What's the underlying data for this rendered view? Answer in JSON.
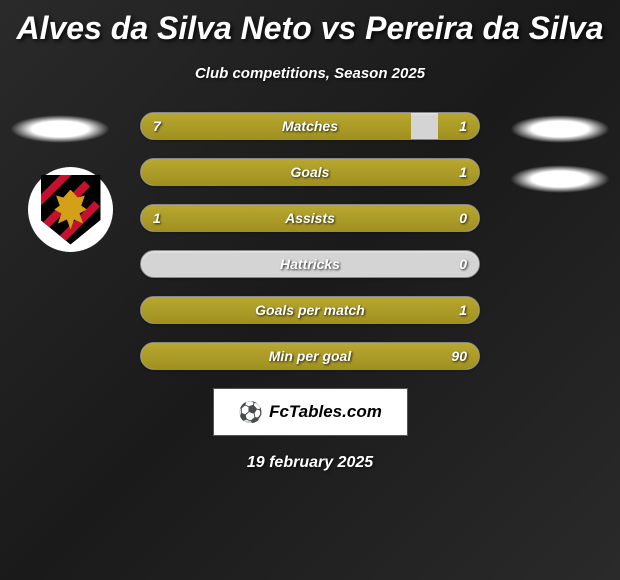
{
  "title": "Alves da Silva Neto vs Pereira da Silva",
  "subtitle": "Club competitions, Season 2025",
  "colors": {
    "background_gradient": [
      "#2a2a2a",
      "#1a1a1a"
    ],
    "bar_track": "#d4d4d4",
    "bar_fill": "#a09020",
    "text": "#ffffff",
    "badge_bg": "#ffffff",
    "badge_text": "#000000",
    "crest_bg": "#ffffff",
    "crest_shield": "#000000",
    "crest_stripes": "#c8102e",
    "crest_lion": "#d4a017"
  },
  "typography": {
    "title_fontsize": 32,
    "subtitle_fontsize": 15,
    "bar_label_fontsize": 14,
    "footer_fontsize": 16
  },
  "stats": [
    {
      "label": "Matches",
      "left_val": "7",
      "right_val": "1",
      "left_pct": 80,
      "right_pct": 12
    },
    {
      "label": "Goals",
      "left_val": "",
      "right_val": "1",
      "left_pct": 0,
      "right_pct": 100
    },
    {
      "label": "Assists",
      "left_val": "1",
      "right_val": "0",
      "left_pct": 100,
      "right_pct": 0
    },
    {
      "label": "Hattricks",
      "left_val": "",
      "right_val": "0",
      "left_pct": 0,
      "right_pct": 0
    },
    {
      "label": "Goals per match",
      "left_val": "",
      "right_val": "1",
      "left_pct": 0,
      "right_pct": 100
    },
    {
      "label": "Min per goal",
      "left_val": "",
      "right_val": "90",
      "left_pct": 0,
      "right_pct": 100
    }
  ],
  "footer": {
    "site": "FcTables.com",
    "logo_glyph": "⚽",
    "date": "19 february 2025"
  }
}
